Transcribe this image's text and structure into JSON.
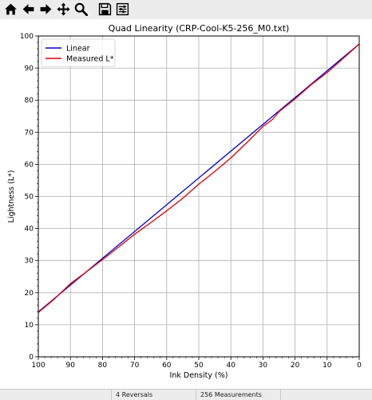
{
  "toolbar": {
    "buttons": [
      {
        "name": "home-icon"
      },
      {
        "name": "back-arrow-icon"
      },
      {
        "name": "forward-arrow-icon"
      },
      {
        "name": "pan-move-icon"
      },
      {
        "name": "zoom-magnifier-icon"
      },
      {
        "name": "save-disk-icon"
      },
      {
        "name": "configure-subplots-icon"
      }
    ]
  },
  "status": {
    "reversals": "4 Reversals",
    "measurements": "256 Measurements"
  },
  "chart_data": {
    "type": "line",
    "title": "Quad Linearity  (CRP-Cool-K5-256_M0.txt)",
    "xlabel": "Ink Density (%)",
    "ylabel": "Lightness (L*)",
    "xlim": [
      100,
      0
    ],
    "ylim": [
      0,
      100
    ],
    "x_ticks": [
      100,
      90,
      80,
      70,
      60,
      50,
      40,
      30,
      20,
      10,
      0
    ],
    "y_ticks": [
      0,
      10,
      20,
      30,
      40,
      50,
      60,
      70,
      80,
      90,
      100
    ],
    "grid": true,
    "legend_position": "top-left",
    "series": [
      {
        "name": "Linear",
        "color": "#0000cc",
        "x": [
          100,
          0
        ],
        "y": [
          14,
          97.5
        ]
      },
      {
        "name": "Measured L*",
        "color": "#e00000",
        "x": [
          100,
          95,
          90,
          85,
          80,
          75,
          70,
          65,
          60,
          55,
          50,
          45,
          40,
          35,
          30,
          27,
          25,
          20,
          15,
          10,
          5,
          0
        ],
        "y": [
          13.8,
          18.0,
          22.8,
          26.5,
          30.3,
          34.2,
          38.2,
          41.8,
          45.5,
          49.4,
          53.8,
          57.8,
          62.0,
          66.8,
          71.8,
          74.0,
          76.4,
          80.4,
          84.8,
          88.6,
          93.0,
          97.5
        ]
      }
    ]
  }
}
